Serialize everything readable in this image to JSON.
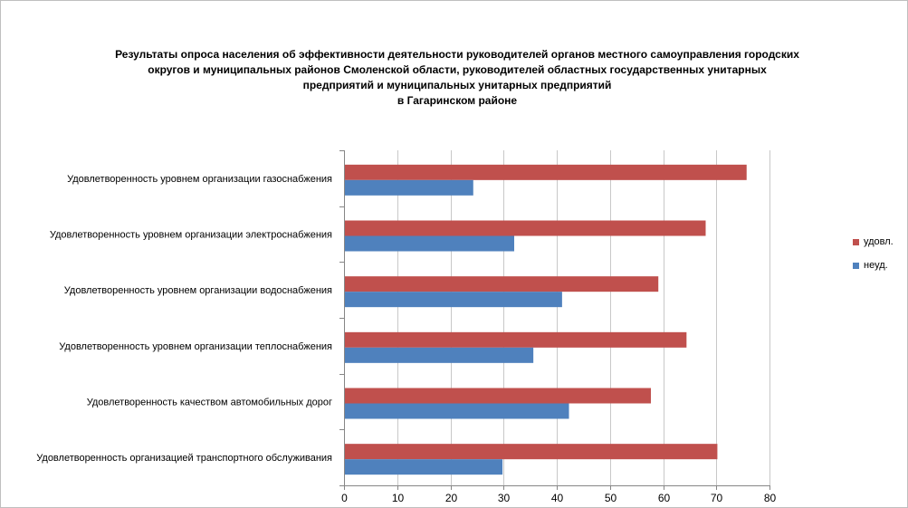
{
  "chart_data": {
    "type": "bar",
    "orientation": "horizontal",
    "title_lines": [
      "Результаты опроса населения об эффективности деятельности руководителей органов местного самоуправления городских",
      "округов и муниципальных районов Смоленской области, руководителей областных государственных унитарных",
      "предприятий и муниципальных унитарных предприятий",
      "в Гагаринском районе"
    ],
    "categories": [
      "Удовлетворенность  уровнем  организации газоснабжения",
      "Удовлетворенность  уровнем  организации электроснабжения",
      "Удовлетворенность  уровнем  организации водоснабжения",
      "Удовлетворенность  уровнем  организации теплоснабжения",
      "Удовлетворенность  качеством  автомобильных дорог",
      "Удовлетворенность  организацией транспортного обслуживания"
    ],
    "series": [
      {
        "name": "удовл.",
        "color": "#C0504D",
        "values": [
          75.7,
          68,
          59.1,
          64.4,
          57.7,
          70.2
        ]
      },
      {
        "name": "неуд.",
        "color": "#4F81BD",
        "values": [
          24.3,
          32,
          41,
          35.6,
          42.3,
          29.8
        ]
      }
    ],
    "xlim": [
      0,
      80
    ],
    "xticks": [
      "0",
      "10",
      "20",
      "30",
      "40",
      "50",
      "60",
      "70",
      "80"
    ],
    "grid": true,
    "legend_position": "right"
  }
}
